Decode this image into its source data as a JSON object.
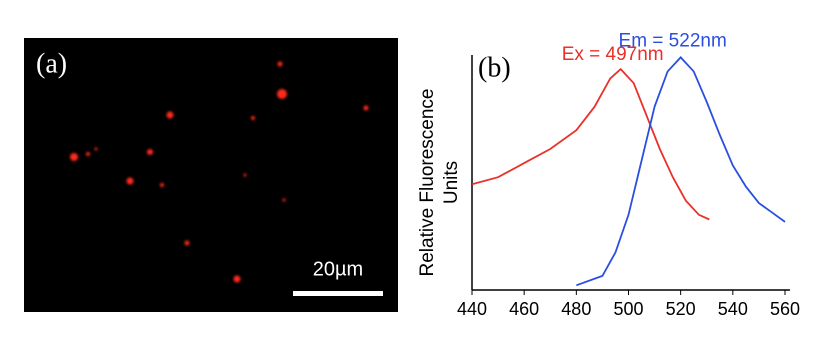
{
  "panel_a": {
    "label": "(a)",
    "scale_bar_label": "20µm"
  },
  "chart_data": {
    "type": "line",
    "panel_label": "(b)",
    "y_label": [
      "Relative Fluorescence",
      "Units"
    ],
    "xlim": [
      440,
      560
    ],
    "xticks": [
      440,
      460,
      480,
      500,
      520,
      540,
      560
    ],
    "ylim": [
      0,
      1
    ],
    "grid": false,
    "series": [
      {
        "name": "Ex = 497nm",
        "color": "#e8312a",
        "x": [
          440,
          450,
          460,
          470,
          480,
          487,
          493,
          497,
          502,
          507,
          512,
          517,
          522,
          527,
          531
        ],
        "values": [
          0.45,
          0.48,
          0.54,
          0.6,
          0.68,
          0.78,
          0.9,
          0.94,
          0.88,
          0.74,
          0.6,
          0.48,
          0.38,
          0.32,
          0.3
        ]
      },
      {
        "name": "Em = 522nm",
        "color": "#2a4fe0",
        "x": [
          480,
          490,
          495,
          500,
          505,
          510,
          515,
          520,
          525,
          530,
          535,
          540,
          545,
          550,
          555,
          560
        ],
        "values": [
          0.02,
          0.06,
          0.16,
          0.32,
          0.55,
          0.78,
          0.93,
          0.99,
          0.93,
          0.8,
          0.66,
          0.53,
          0.44,
          0.37,
          0.33,
          0.29
        ]
      }
    ]
  }
}
